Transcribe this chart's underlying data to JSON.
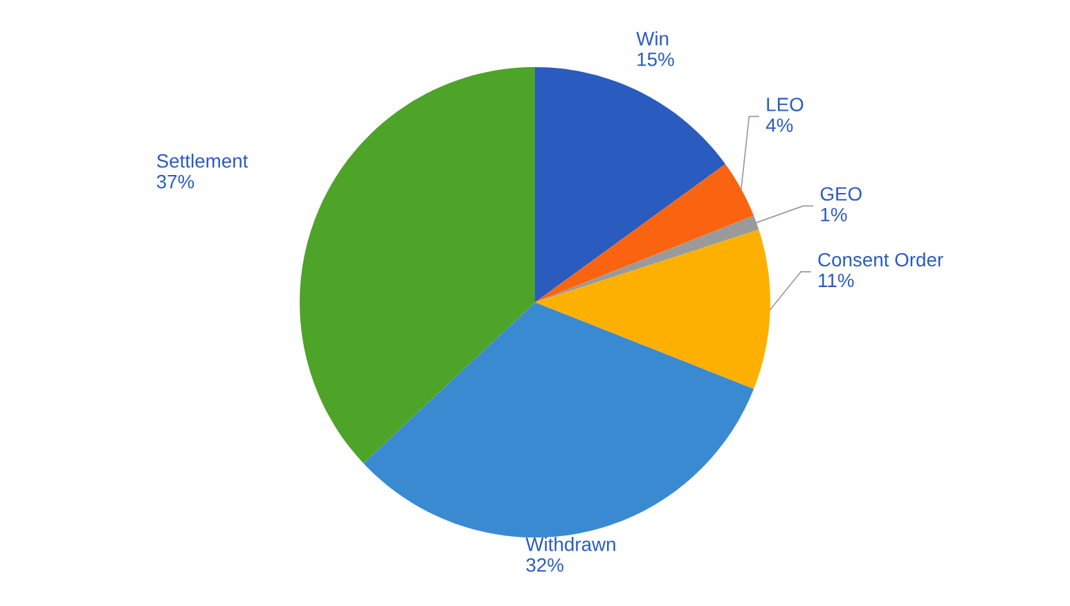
{
  "chart_data": {
    "type": "pie",
    "categories": [
      "Win",
      "LEO",
      "GEO",
      "Consent Order",
      "Withdrawn",
      "Settlement"
    ],
    "values": [
      15,
      4,
      1,
      11,
      32,
      37
    ],
    "value_labels": [
      "15%",
      "4%",
      "1%",
      "11%",
      "32%",
      "37%"
    ],
    "colors": [
      "#2a5bbf",
      "#fa6410",
      "#9a9a9a",
      "#feb000",
      "#3a8ad2",
      "#4ea329"
    ],
    "legend": false
  }
}
